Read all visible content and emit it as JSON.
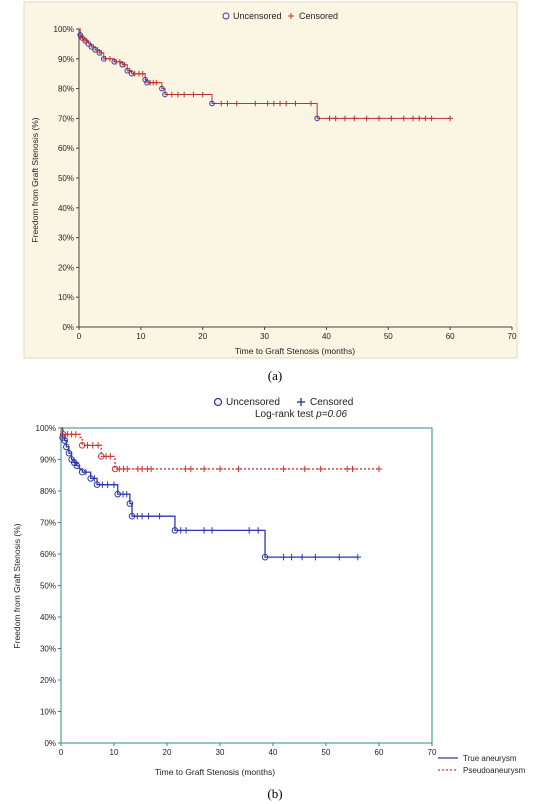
{
  "figure_labels": [
    "(a)",
    "(b)"
  ],
  "colors": {
    "panel_a_background": "#fbf5e4",
    "panel_a_curve": "#c03030",
    "panel_a_uncensored_marker": "#3a3aa0",
    "panel_b_true": "#2a3aa8",
    "panel_b_pseudo": "#d03030",
    "panel_b_border": "#2e8b8b"
  },
  "chart_data": [
    {
      "type": "line",
      "xlabel": "Time to Graft Stenosis (months)",
      "ylabel": "Freedom from Graft Stenosis (%)",
      "xlim": [
        0,
        70
      ],
      "ylim": [
        0,
        100
      ],
      "x_ticks": [
        "0",
        "10",
        "20",
        "30",
        "40",
        "50",
        "60",
        "70"
      ],
      "y_ticks": [
        "0%",
        "10%",
        "20%",
        "30%",
        "40%",
        "50%",
        "60%",
        "70%",
        "80%",
        "90%",
        "100%"
      ],
      "legend": {
        "position": "top-center",
        "entries": [
          "Uncensored",
          "Censored"
        ]
      },
      "series": [
        {
          "steps": [
            [
              0,
              100
            ],
            [
              0.2,
              98
            ],
            [
              0.5,
              97
            ],
            [
              1,
              96
            ],
            [
              1.5,
              95
            ],
            [
              2,
              94
            ],
            [
              2.6,
              93
            ],
            [
              3.3,
              92
            ],
            [
              4,
              90
            ],
            [
              5.7,
              89
            ],
            [
              7,
              88
            ],
            [
              7.8,
              86
            ],
            [
              8.5,
              85
            ],
            [
              10.7,
              83
            ],
            [
              11,
              82
            ],
            [
              13.4,
              80
            ],
            [
              13.9,
              78
            ],
            [
              21.5,
              75
            ],
            [
              38.5,
              70
            ],
            [
              60,
              70
            ]
          ],
          "uncensored": [
            [
              0.2,
              98
            ],
            [
              0.5,
              97
            ],
            [
              1,
              96
            ],
            [
              1.5,
              95
            ],
            [
              2,
              94
            ],
            [
              2.6,
              93
            ],
            [
              3.3,
              92
            ],
            [
              4,
              90
            ],
            [
              5.7,
              89
            ],
            [
              7,
              88
            ],
            [
              7.8,
              86
            ],
            [
              8.5,
              85
            ],
            [
              10.7,
              83
            ],
            [
              11,
              82
            ],
            [
              13.4,
              80
            ],
            [
              13.9,
              78
            ],
            [
              21.5,
              75
            ],
            [
              38.5,
              70
            ]
          ],
          "censored": [
            [
              0.6,
              97
            ],
            [
              1.2,
              96
            ],
            [
              2.3,
              94
            ],
            [
              3,
              93
            ],
            [
              3.6,
              92
            ],
            [
              4.3,
              90
            ],
            [
              5,
              90
            ],
            [
              6,
              89
            ],
            [
              6.6,
              89
            ],
            [
              7.4,
              88
            ],
            [
              8.2,
              86
            ],
            [
              9,
              85
            ],
            [
              9.7,
              85
            ],
            [
              10.3,
              85
            ],
            [
              11.5,
              82
            ],
            [
              12,
              82
            ],
            [
              12.5,
              82
            ],
            [
              15,
              78
            ],
            [
              16,
              78
            ],
            [
              17,
              78
            ],
            [
              18.5,
              78
            ],
            [
              20,
              78
            ],
            [
              23,
              75
            ],
            [
              24,
              75
            ],
            [
              25.5,
              75
            ],
            [
              28.5,
              75
            ],
            [
              30.5,
              75
            ],
            [
              31.5,
              75
            ],
            [
              32.5,
              75
            ],
            [
              33.5,
              75
            ],
            [
              35,
              75
            ],
            [
              37.5,
              75
            ],
            [
              40.5,
              70
            ],
            [
              41.5,
              70
            ],
            [
              43,
              70
            ],
            [
              44.5,
              70
            ],
            [
              46.5,
              70
            ],
            [
              48.5,
              70
            ],
            [
              50.5,
              70
            ],
            [
              52.5,
              70
            ],
            [
              54,
              70
            ],
            [
              55,
              70
            ],
            [
              56,
              70
            ],
            [
              57,
              70
            ],
            [
              60,
              70
            ]
          ]
        }
      ]
    },
    {
      "type": "line",
      "annotation": "Log-rank test ",
      "annotation_p": "p=0.06",
      "xlabel": "Time to Graft Stenosis (months)",
      "ylabel": "Freedom from Graft Stenosis (%)",
      "xlim": [
        0,
        70
      ],
      "ylim": [
        0,
        100
      ],
      "x_ticks": [
        "0",
        "10",
        "20",
        "30",
        "40",
        "50",
        "60",
        "70"
      ],
      "y_ticks": [
        "0%",
        "10%",
        "20%",
        "30%",
        "40%",
        "50%",
        "60%",
        "70%",
        "80%",
        "90%",
        "100%"
      ],
      "legend": {
        "position": "top-center",
        "entries": [
          "Uncensored",
          "Censored"
        ]
      },
      "series_legend": {
        "position": "bottom-right",
        "entries": [
          "True aneurysm",
          "Pseudoaneurysm"
        ]
      },
      "series": [
        {
          "name": "True aneurysm",
          "steps": [
            [
              0,
              100
            ],
            [
              0.3,
              97
            ],
            [
              0.7,
              96
            ],
            [
              1,
              94
            ],
            [
              1.5,
              92
            ],
            [
              2,
              90
            ],
            [
              2.5,
              89
            ],
            [
              3,
              88
            ],
            [
              3.5,
              87
            ],
            [
              4,
              86
            ],
            [
              5.6,
              84
            ],
            [
              6.8,
              82
            ],
            [
              10.7,
              79
            ],
            [
              13,
              76
            ],
            [
              13.4,
              72
            ],
            [
              21.5,
              67.5
            ],
            [
              38.5,
              59
            ],
            [
              56,
              59
            ]
          ],
          "uncensored": [
            [
              0.3,
              97
            ],
            [
              0.7,
              96
            ],
            [
              1,
              94
            ],
            [
              1.5,
              92
            ],
            [
              2,
              90
            ],
            [
              2.5,
              89
            ],
            [
              3,
              88
            ],
            [
              4,
              86
            ],
            [
              5.6,
              84
            ],
            [
              6.8,
              82
            ],
            [
              10.7,
              79
            ],
            [
              13,
              76
            ],
            [
              13.4,
              72
            ],
            [
              21.5,
              67.5
            ],
            [
              38.5,
              59
            ]
          ],
          "censored": [
            [
              2.8,
              89
            ],
            [
              4.7,
              86
            ],
            [
              6.3,
              84
            ],
            [
              7.8,
              82
            ],
            [
              8.8,
              82
            ],
            [
              10,
              82
            ],
            [
              11.7,
              79
            ],
            [
              12.4,
              79
            ],
            [
              14.4,
              72
            ],
            [
              15.3,
              72
            ],
            [
              16.5,
              72
            ],
            [
              18.6,
              72
            ],
            [
              22.6,
              67.5
            ],
            [
              23.6,
              67.5
            ],
            [
              27,
              67.5
            ],
            [
              28.5,
              67.5
            ],
            [
              35.5,
              67.5
            ],
            [
              37.2,
              67.5
            ],
            [
              42,
              59
            ],
            [
              43.5,
              59
            ],
            [
              45.5,
              59
            ],
            [
              48,
              59
            ],
            [
              52.5,
              59
            ],
            [
              56,
              59
            ]
          ]
        },
        {
          "name": "Pseudoaneurysm",
          "steps": [
            [
              0,
              100
            ],
            [
              0.4,
              98
            ],
            [
              3.6,
              97
            ],
            [
              4,
              94.5
            ],
            [
              7.6,
              91
            ],
            [
              10.2,
              87
            ],
            [
              60,
              87
            ]
          ],
          "uncensored": [
            [
              0.4,
              98
            ],
            [
              4,
              94.5
            ],
            [
              7.6,
              91
            ],
            [
              10.2,
              87
            ]
          ],
          "censored": [
            [
              1.2,
              98
            ],
            [
              2,
              98
            ],
            [
              2.8,
              98
            ],
            [
              5,
              94.5
            ],
            [
              6,
              94.5
            ],
            [
              7,
              94.5
            ],
            [
              8.5,
              91
            ],
            [
              9.3,
              91
            ],
            [
              11,
              87
            ],
            [
              11.8,
              87
            ],
            [
              12.5,
              87
            ],
            [
              14.5,
              87
            ],
            [
              15.3,
              87
            ],
            [
              16.3,
              87
            ],
            [
              17,
              87
            ],
            [
              23.5,
              87
            ],
            [
              24.5,
              87
            ],
            [
              27,
              87
            ],
            [
              30,
              87
            ],
            [
              33.5,
              87
            ],
            [
              42,
              87
            ],
            [
              46,
              87
            ],
            [
              49,
              87
            ],
            [
              54,
              87
            ],
            [
              55,
              87
            ],
            [
              60,
              87
            ]
          ]
        }
      ]
    }
  ]
}
